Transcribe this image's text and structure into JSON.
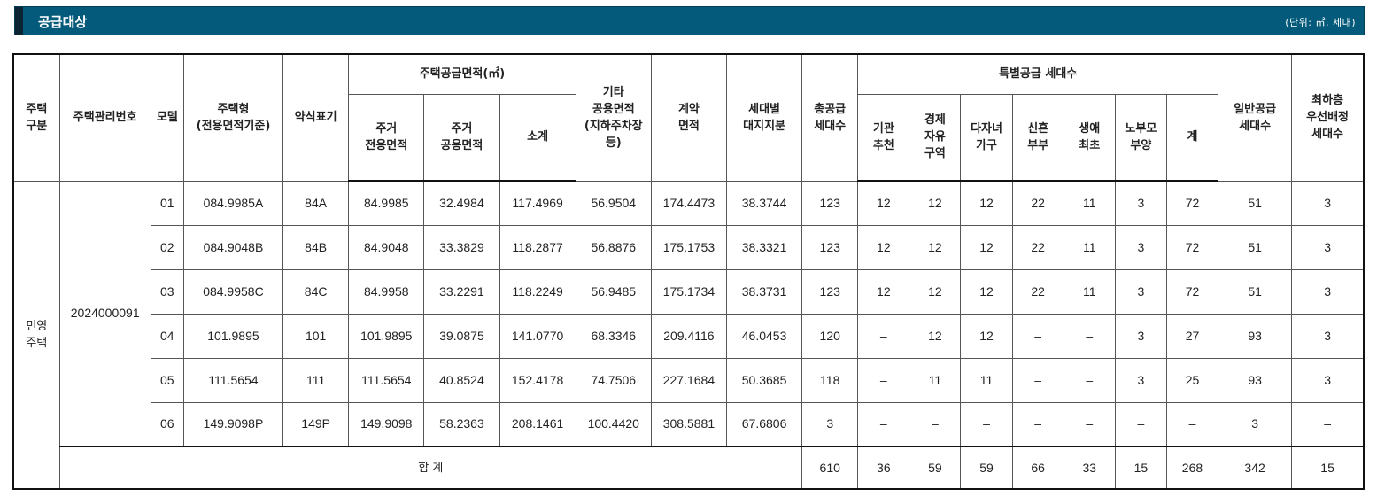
{
  "header": {
    "title": "공급대상",
    "unit": "(단위: ㎡, 세대)"
  },
  "columns": {
    "housing_type": "주택\n구분",
    "mgmt_no": "주택관리번호",
    "model": "모델",
    "house_type": "주택형\n(전용면적기준)",
    "abbr": "약식표기",
    "supply_area_group": "주택공급면적(㎡)",
    "exclusive_area": "주거\n전용면적",
    "common_area": "주거\n공용면적",
    "subtotal": "소계",
    "other_common": "기타\n공용면적\n(지하주차장\n등)",
    "contract_area": "계약\n면적",
    "land_share": "세대별\n대지지분",
    "total_supply": "총공급\n세대수",
    "special_group": "특별공급 세대수",
    "institution": "기관\n추천",
    "economic_zone": "경제\n자유\n구역",
    "multi_child": "다자녀\n가구",
    "newlywed": "신혼\n부부",
    "first_life": "생애\n최초",
    "elderly_parent": "노부모\n부양",
    "special_sum": "계",
    "general_supply": "일반공급\n세대수",
    "lowest_floor": "최하층\n우선배정\n세대수"
  },
  "group": {
    "housing_type": "민영\n주택",
    "mgmt_no": "2024000091"
  },
  "rows": [
    {
      "model": "01",
      "type": "084.9985A",
      "abbr": "84A",
      "excl": "84.9985",
      "comm": "32.4984",
      "sub": "117.4969",
      "other": "56.9504",
      "contract": "174.4473",
      "land": "38.3744",
      "total": "123",
      "inst": "12",
      "econ": "12",
      "multi": "12",
      "newly": "22",
      "first": "11",
      "elder": "3",
      "sum": "72",
      "general": "51",
      "lowest": "3"
    },
    {
      "model": "02",
      "type": "084.9048B",
      "abbr": "84B",
      "excl": "84.9048",
      "comm": "33.3829",
      "sub": "118.2877",
      "other": "56.8876",
      "contract": "175.1753",
      "land": "38.3321",
      "total": "123",
      "inst": "12",
      "econ": "12",
      "multi": "12",
      "newly": "22",
      "first": "11",
      "elder": "3",
      "sum": "72",
      "general": "51",
      "lowest": "3"
    },
    {
      "model": "03",
      "type": "084.9958C",
      "abbr": "84C",
      "excl": "84.9958",
      "comm": "33.2291",
      "sub": "118.2249",
      "other": "56.9485",
      "contract": "175.1734",
      "land": "38.3731",
      "total": "123",
      "inst": "12",
      "econ": "12",
      "multi": "12",
      "newly": "22",
      "first": "11",
      "elder": "3",
      "sum": "72",
      "general": "51",
      "lowest": "3"
    },
    {
      "model": "04",
      "type": "101.9895",
      "abbr": "101",
      "excl": "101.9895",
      "comm": "39.0875",
      "sub": "141.0770",
      "other": "68.3346",
      "contract": "209.4116",
      "land": "46.0453",
      "total": "120",
      "inst": "–",
      "econ": "12",
      "multi": "12",
      "newly": "–",
      "first": "–",
      "elder": "3",
      "sum": "27",
      "general": "93",
      "lowest": "3"
    },
    {
      "model": "05",
      "type": "111.5654",
      "abbr": "111",
      "excl": "111.5654",
      "comm": "40.8524",
      "sub": "152.4178",
      "other": "74.7506",
      "contract": "227.1684",
      "land": "50.3685",
      "total": "118",
      "inst": "–",
      "econ": "11",
      "multi": "11",
      "newly": "–",
      "first": "–",
      "elder": "3",
      "sum": "25",
      "general": "93",
      "lowest": "3"
    },
    {
      "model": "06",
      "type": "149.9098P",
      "abbr": "149P",
      "excl": "149.9098",
      "comm": "58.2363",
      "sub": "208.1461",
      "other": "100.4420",
      "contract": "308.5881",
      "land": "67.6806",
      "total": "3",
      "inst": "–",
      "econ": "–",
      "multi": "–",
      "newly": "–",
      "first": "–",
      "elder": "–",
      "sum": "–",
      "general": "3",
      "lowest": "–"
    }
  ],
  "totals": {
    "label": "합 계",
    "total": "610",
    "inst": "36",
    "econ": "59",
    "multi": "59",
    "newly": "66",
    "first": "33",
    "elder": "15",
    "sum": "268",
    "general": "342",
    "lowest": "15"
  }
}
